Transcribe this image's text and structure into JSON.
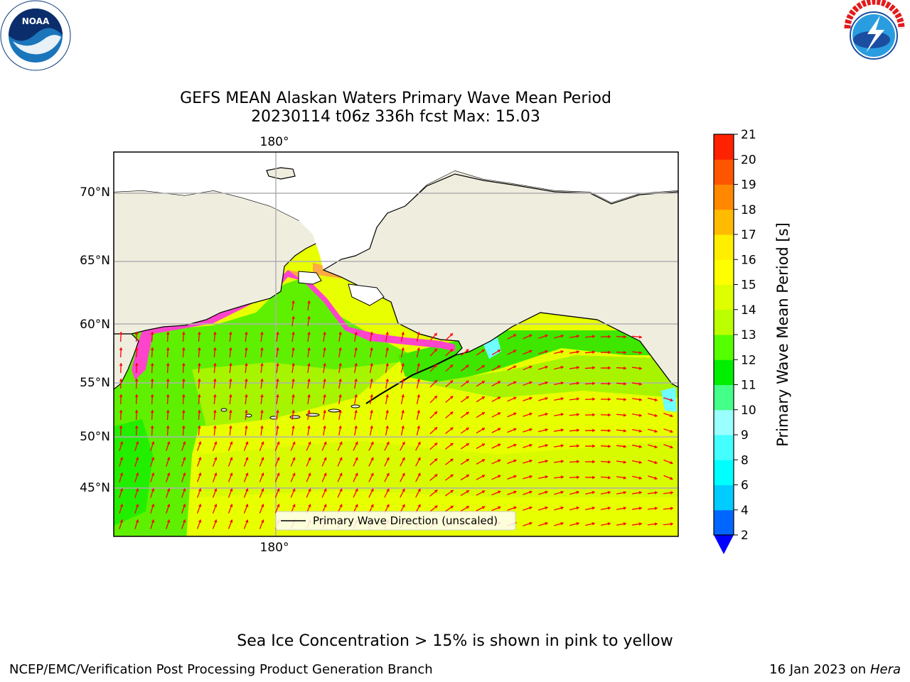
{
  "header": {
    "noaa_logo_text": "NOAA",
    "noaa_ring_text": "NATIONAL OCEANIC AND ATMOSPHERIC ADMINISTRATION · U.S. DEPARTMENT OF COMMERCE",
    "nws_ring_text": "NATIONAL WEATHER SERVICE"
  },
  "title": {
    "line1": "GEFS MEAN Alaskan Waters Primary Wave Mean Period",
    "line2": "20230114 t06z 336h fcst   Max: 15.03"
  },
  "map": {
    "lon_label_top": "180°",
    "lon_label_bottom": "180°",
    "lat_labels": [
      "70°N",
      "65°N",
      "60°N",
      "55°N",
      "50°N",
      "45°N"
    ],
    "legend_label": "Primary Wave Direction (unscaled)",
    "colors": {
      "land": "#efedde",
      "arrow": "#ff0000",
      "grid": "#b0b0b0",
      "ice_pink": "#ff44cc",
      "ice_orange": "#ffaa44"
    }
  },
  "colorbar": {
    "label": "Primary Wave Mean Period [s]",
    "ticks": [
      "2",
      "4",
      "6",
      "8",
      "9",
      "10",
      "11",
      "12",
      "13",
      "14",
      "15",
      "16",
      "17",
      "18",
      "19",
      "20",
      "21"
    ],
    "colors": [
      "#0066ff",
      "#00ccff",
      "#00ffff",
      "#44ffff",
      "#99ffff",
      "#44ff88",
      "#00ee00",
      "#55ff00",
      "#bbff00",
      "#ddff00",
      "#ffff00",
      "#ffee00",
      "#ffbb00",
      "#ff8800",
      "#ff5500",
      "#ff2200",
      "#ff0000"
    ],
    "extend_color": "#0000ff"
  },
  "footer": {
    "note": "Sea Ice Concentration > 15% is shown in pink to yellow",
    "left": "NCEP/EMC/Verification Post Processing Product Generation Branch",
    "right_date": "16 Jan 2023 on",
    "right_host": "Hera"
  }
}
